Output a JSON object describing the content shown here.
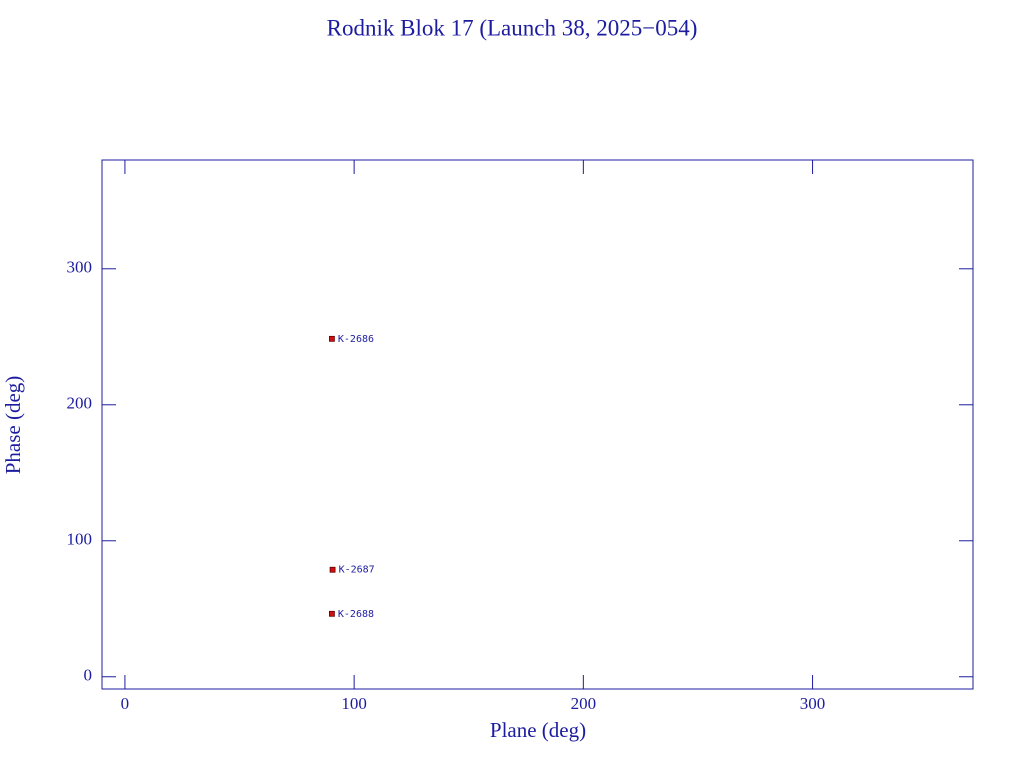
{
  "chart_data": {
    "type": "scatter",
    "title": "Rodnik Blok 17 (Launch 38, 2025−054)",
    "x_label": "Plane (deg)",
    "y_label": "Phase (deg)",
    "xlim": [
      -10,
      370
    ],
    "ylim": [
      -9,
      380
    ],
    "xticks": [
      0,
      100,
      200,
      300
    ],
    "yticks": [
      0,
      100,
      200,
      300
    ],
    "marker_color": "#d01010",
    "point_labels": [
      "K-2686",
      "K-2687",
      "K-2688"
    ],
    "x": [
      90.3,
      90.6,
      90.3
    ],
    "values": [
      248.5,
      78.7,
      46.3
    ]
  }
}
